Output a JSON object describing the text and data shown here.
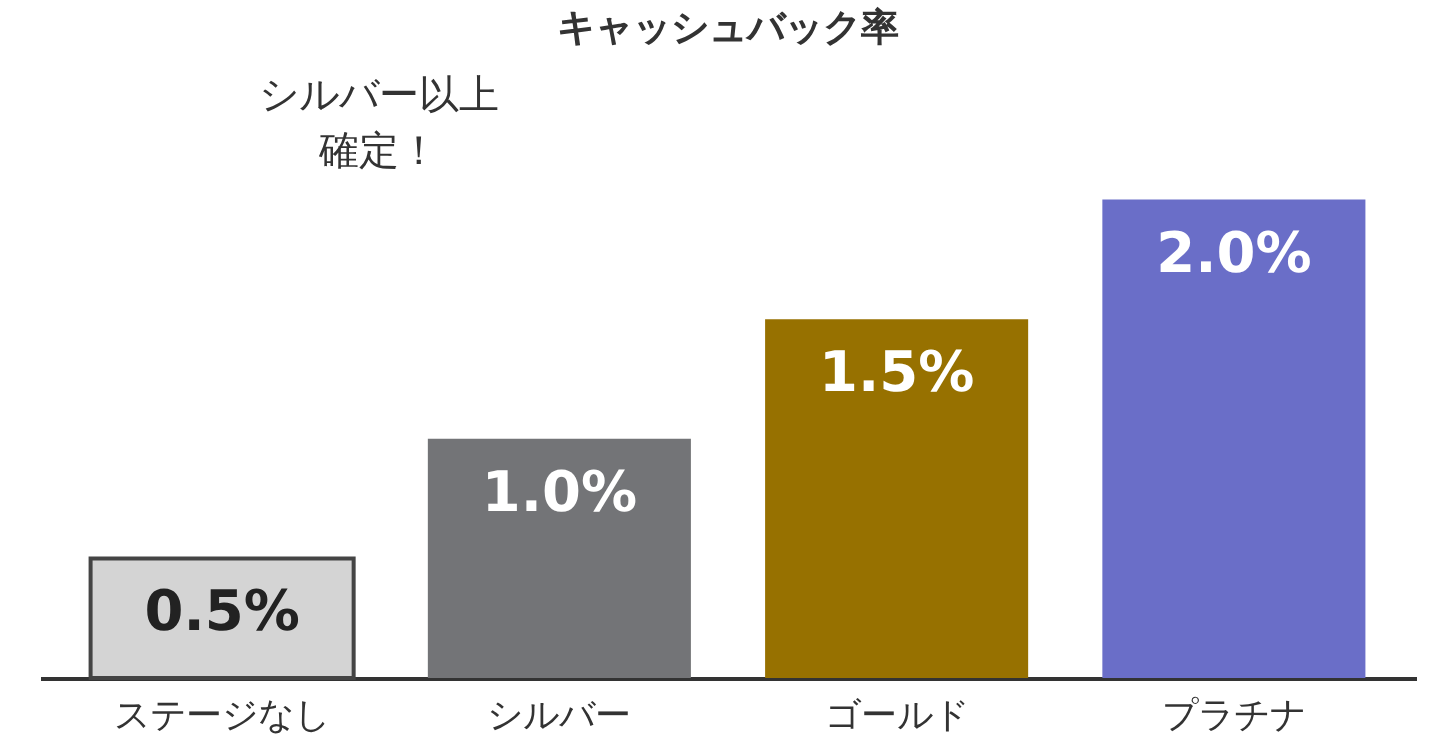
{
  "chart_data": {
    "type": "bar",
    "title": "キャッシュバック率",
    "categories": [
      "ステージなし",
      "シルバー",
      "ゴールド",
      "プラチナ"
    ],
    "values": [
      0.5,
      1.0,
      1.5,
      2.0
    ],
    "colors": [
      "#d4d4d4",
      "#737477",
      "#977100",
      "#6a6ec8"
    ],
    "value_labels": [
      "0.5%",
      "1.0%",
      "1.5%",
      "2.0%"
    ],
    "annotations": [
      "シルバー以上確定！"
    ],
    "grid": false,
    "tick_labels": "x"
  }
}
